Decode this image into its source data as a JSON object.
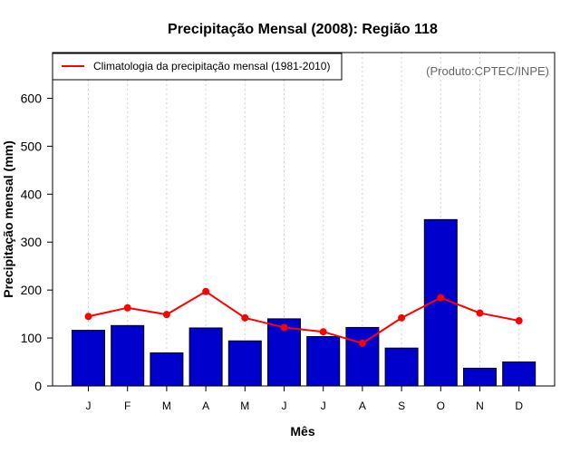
{
  "chart_data": {
    "type": "bar",
    "title": "Precipitação Mensal (2008): Região 118",
    "xlabel": "Mês",
    "ylabel": "Precipitação mensal (mm)",
    "categories": [
      "J",
      "F",
      "M",
      "A",
      "M",
      "J",
      "J",
      "A",
      "S",
      "O",
      "N",
      "D"
    ],
    "ylim": [
      0,
      700
    ],
    "yticks": [
      0,
      100,
      200,
      300,
      400,
      500,
      600
    ],
    "grid": "vertical-dotted",
    "series": [
      {
        "name": "Precipitação mensal 2008",
        "type": "bar",
        "color": "#0000cd",
        "values": [
          116,
          126,
          69,
          121,
          94,
          140,
          103,
          122,
          79,
          347,
          37,
          50
        ]
      },
      {
        "name": "Climatologia da precipitação mensal (1981-2010)",
        "type": "line",
        "color": "#ff0000",
        "values": [
          145,
          163,
          149,
          197,
          142,
          122,
          113,
          89,
          142,
          184,
          152,
          136
        ]
      }
    ],
    "legend": {
      "position": "top-left",
      "label": "Climatologia da precipitação mensal (1981-2010)"
    },
    "source": "(Produto:CPTEC/INPE)"
  }
}
